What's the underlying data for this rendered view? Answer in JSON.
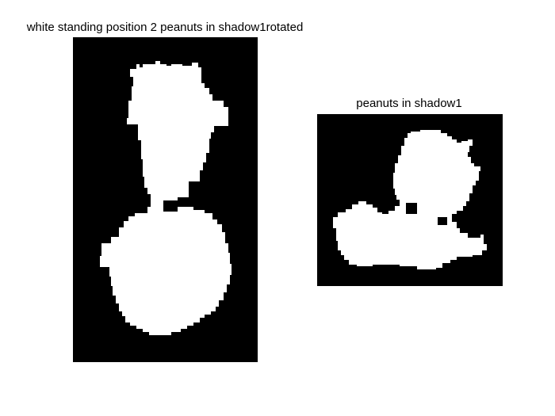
{
  "figure": {
    "background_color": "#ffffff",
    "image_background_color": "#000000",
    "silhouette_color": "#ffffff"
  },
  "panels": [
    {
      "title": "white standing position 2 peanuts in shadow1rotated"
    },
    {
      "title": "peanuts in shadow1"
    }
  ]
}
